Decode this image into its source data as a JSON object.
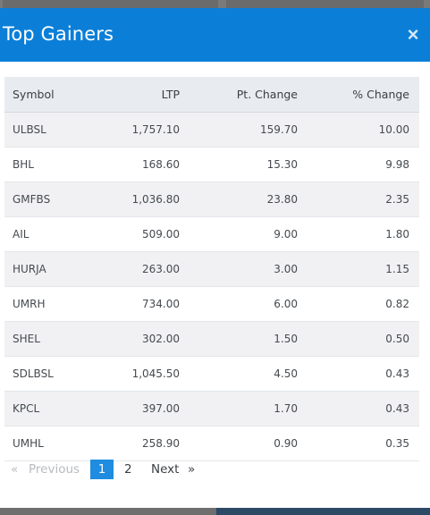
{
  "modal": {
    "title": "Top Gainers",
    "close_glyph": "×"
  },
  "table": {
    "headers": [
      "Symbol",
      "LTP",
      "Pt. Change",
      "% Change"
    ],
    "rows": [
      [
        "ULBSL",
        "1,757.10",
        "159.70",
        "10.00"
      ],
      [
        "BHL",
        "168.60",
        "15.30",
        "9.98"
      ],
      [
        "GMFBS",
        "1,036.80",
        "23.80",
        "2.35"
      ],
      [
        "AIL",
        "509.00",
        "9.00",
        "1.80"
      ],
      [
        "HURJA",
        "263.00",
        "3.00",
        "1.15"
      ],
      [
        "UMRH",
        "734.00",
        "6.00",
        "0.82"
      ],
      [
        "SHEL",
        "302.00",
        "1.50",
        "0.50"
      ],
      [
        "SDLBSL",
        "1,045.50",
        "4.50",
        "0.43"
      ],
      [
        "KPCL",
        "397.00",
        "1.70",
        "0.43"
      ],
      [
        "UMHL",
        "258.90",
        "0.90",
        "0.35"
      ]
    ]
  },
  "pagination": {
    "first": "«",
    "previous": "Previous",
    "pages": [
      "1",
      "2"
    ],
    "next": "Next",
    "last": "»"
  },
  "colors": {
    "header_blue": "#0b7fd8",
    "positive_green": "#2f8a3a",
    "active_page": "#1f8ce0"
  }
}
